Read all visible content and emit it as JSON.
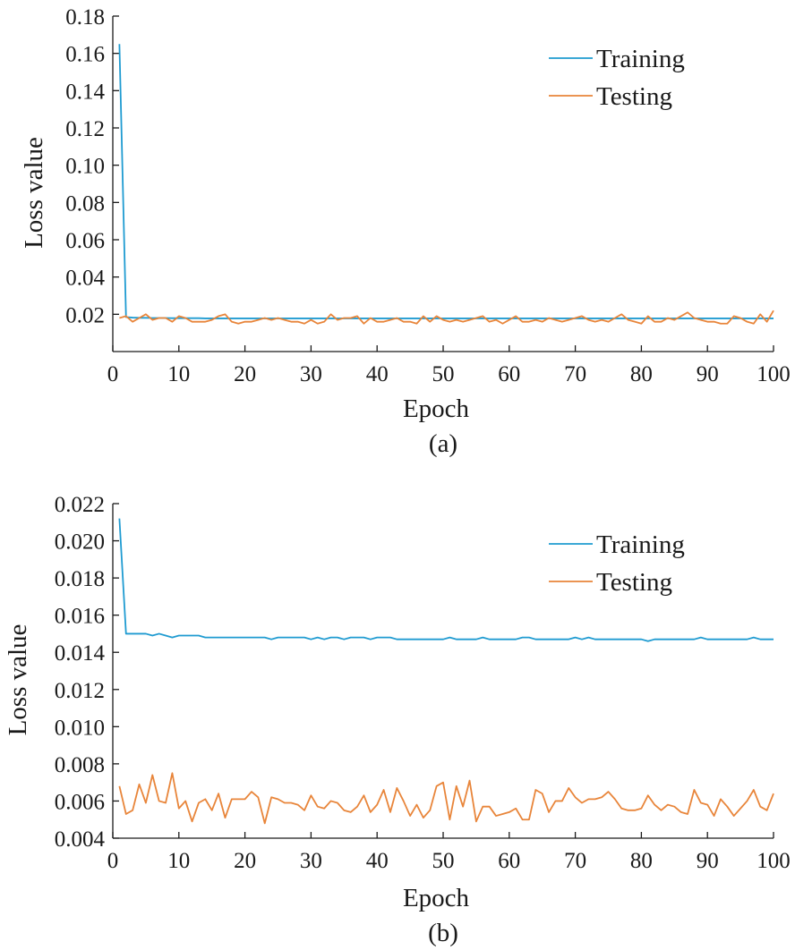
{
  "chart_data": [
    {
      "type": "line",
      "panel_label": "(a)",
      "xlabel": "Epoch",
      "ylabel": "Loss value",
      "xlim": [
        0,
        100
      ],
      "ylim": [
        0.0,
        0.18
      ],
      "xticks": [
        0,
        10,
        20,
        30,
        40,
        50,
        60,
        70,
        80,
        90,
        100
      ],
      "yticks": [
        "0.02",
        "0.04",
        "0.06",
        "0.08",
        "0.10",
        "0.12",
        "0.14",
        "0.16",
        "0.18"
      ],
      "ytick_values": [
        0.02,
        0.04,
        0.06,
        0.08,
        0.1,
        0.12,
        0.14,
        0.16,
        0.18
      ],
      "grid": false,
      "legend_position": "top-right",
      "series": [
        {
          "name": "Training",
          "color": "#1f9bd1",
          "x": [
            1,
            2,
            3,
            4,
            5,
            6,
            7,
            8,
            9,
            10,
            11,
            12,
            13,
            14,
            15,
            16,
            17,
            18,
            19,
            20,
            21,
            22,
            23,
            24,
            25,
            26,
            27,
            28,
            29,
            30,
            31,
            32,
            33,
            34,
            35,
            36,
            37,
            38,
            39,
            40,
            41,
            42,
            43,
            44,
            45,
            46,
            47,
            48,
            49,
            50,
            51,
            52,
            53,
            54,
            55,
            56,
            57,
            58,
            59,
            60,
            61,
            62,
            63,
            64,
            65,
            66,
            67,
            68,
            69,
            70,
            71,
            72,
            73,
            74,
            75,
            76,
            77,
            78,
            79,
            80,
            81,
            82,
            83,
            84,
            85,
            86,
            87,
            88,
            89,
            90,
            91,
            92,
            93,
            94,
            95,
            96,
            97,
            98,
            99,
            100
          ],
          "values": [
            0.165,
            0.0185,
            0.0182,
            0.0181,
            0.0181,
            0.018,
            0.018,
            0.018,
            0.0179,
            0.0179,
            0.0179,
            0.0179,
            0.0179,
            0.0178,
            0.0178,
            0.0178,
            0.0178,
            0.0178,
            0.0178,
            0.0178,
            0.0178,
            0.0178,
            0.0178,
            0.0178,
            0.0178,
            0.0178,
            0.0178,
            0.0178,
            0.0178,
            0.0178,
            0.0178,
            0.0178,
            0.0178,
            0.0178,
            0.0178,
            0.0178,
            0.0178,
            0.0178,
            0.0178,
            0.0178,
            0.0178,
            0.0178,
            0.0178,
            0.0178,
            0.0178,
            0.0178,
            0.0178,
            0.0178,
            0.0178,
            0.0178,
            0.0178,
            0.0178,
            0.0178,
            0.0178,
            0.0178,
            0.0178,
            0.0178,
            0.0178,
            0.0178,
            0.0178,
            0.0178,
            0.0178,
            0.0178,
            0.0178,
            0.0178,
            0.0178,
            0.0178,
            0.0178,
            0.0178,
            0.0178,
            0.0178,
            0.0178,
            0.0178,
            0.0178,
            0.0178,
            0.0178,
            0.0178,
            0.0178,
            0.0178,
            0.0178,
            0.0178,
            0.0178,
            0.0178,
            0.0178,
            0.0178,
            0.0178,
            0.0178,
            0.0178,
            0.0178,
            0.0178,
            0.0178,
            0.0178,
            0.0178,
            0.0178,
            0.0178,
            0.0178,
            0.0178,
            0.0178,
            0.0178,
            0.0178
          ]
        },
        {
          "name": "Testing",
          "color": "#e8853a",
          "x": [
            1,
            2,
            3,
            4,
            5,
            6,
            7,
            8,
            9,
            10,
            11,
            12,
            13,
            14,
            15,
            16,
            17,
            18,
            19,
            20,
            21,
            22,
            23,
            24,
            25,
            26,
            27,
            28,
            29,
            30,
            31,
            32,
            33,
            34,
            35,
            36,
            37,
            38,
            39,
            40,
            41,
            42,
            43,
            44,
            45,
            46,
            47,
            48,
            49,
            50,
            51,
            52,
            53,
            54,
            55,
            56,
            57,
            58,
            59,
            60,
            61,
            62,
            63,
            64,
            65,
            66,
            67,
            68,
            69,
            70,
            71,
            72,
            73,
            74,
            75,
            76,
            77,
            78,
            79,
            80,
            81,
            82,
            83,
            84,
            85,
            86,
            87,
            88,
            89,
            90,
            91,
            92,
            93,
            94,
            95,
            96,
            97,
            98,
            99,
            100
          ],
          "values": [
            0.018,
            0.019,
            0.016,
            0.018,
            0.02,
            0.017,
            0.018,
            0.018,
            0.016,
            0.019,
            0.018,
            0.016,
            0.016,
            0.016,
            0.017,
            0.019,
            0.02,
            0.016,
            0.015,
            0.016,
            0.016,
            0.017,
            0.018,
            0.017,
            0.018,
            0.017,
            0.016,
            0.016,
            0.015,
            0.017,
            0.015,
            0.016,
            0.02,
            0.017,
            0.018,
            0.018,
            0.019,
            0.015,
            0.018,
            0.016,
            0.016,
            0.017,
            0.018,
            0.016,
            0.016,
            0.015,
            0.019,
            0.016,
            0.019,
            0.017,
            0.016,
            0.017,
            0.016,
            0.017,
            0.018,
            0.019,
            0.016,
            0.017,
            0.015,
            0.017,
            0.019,
            0.016,
            0.016,
            0.017,
            0.016,
            0.018,
            0.017,
            0.016,
            0.017,
            0.018,
            0.019,
            0.017,
            0.016,
            0.017,
            0.016,
            0.018,
            0.02,
            0.017,
            0.016,
            0.015,
            0.019,
            0.016,
            0.016,
            0.018,
            0.017,
            0.019,
            0.021,
            0.018,
            0.017,
            0.016,
            0.016,
            0.015,
            0.015,
            0.019,
            0.018,
            0.016,
            0.015,
            0.02,
            0.016,
            0.022
          ]
        }
      ]
    },
    {
      "type": "line",
      "panel_label": "(b)",
      "xlabel": "Epoch",
      "ylabel": "Loss value",
      "xlim": [
        0,
        100
      ],
      "ylim": [
        0.004,
        0.022
      ],
      "xticks": [
        0,
        10,
        20,
        30,
        40,
        50,
        60,
        70,
        80,
        90,
        100
      ],
      "yticks": [
        "0.004",
        "0.006",
        "0.008",
        "0.010",
        "0.012",
        "0.014",
        "0.016",
        "0.018",
        "0.020",
        "0.022"
      ],
      "ytick_values": [
        0.004,
        0.006,
        0.008,
        0.01,
        0.012,
        0.014,
        0.016,
        0.018,
        0.02,
        0.022
      ],
      "grid": false,
      "legend_position": "top-right",
      "series": [
        {
          "name": "Training",
          "color": "#1f9bd1",
          "x": [
            1,
            2,
            3,
            4,
            5,
            6,
            7,
            8,
            9,
            10,
            11,
            12,
            13,
            14,
            15,
            16,
            17,
            18,
            19,
            20,
            21,
            22,
            23,
            24,
            25,
            26,
            27,
            28,
            29,
            30,
            31,
            32,
            33,
            34,
            35,
            36,
            37,
            38,
            39,
            40,
            41,
            42,
            43,
            44,
            45,
            46,
            47,
            48,
            49,
            50,
            51,
            52,
            53,
            54,
            55,
            56,
            57,
            58,
            59,
            60,
            61,
            62,
            63,
            64,
            65,
            66,
            67,
            68,
            69,
            70,
            71,
            72,
            73,
            74,
            75,
            76,
            77,
            78,
            79,
            80,
            81,
            82,
            83,
            84,
            85,
            86,
            87,
            88,
            89,
            90,
            91,
            92,
            93,
            94,
            95,
            96,
            97,
            98,
            99,
            100
          ],
          "values": [
            0.0212,
            0.015,
            0.015,
            0.015,
            0.015,
            0.0149,
            0.015,
            0.0149,
            0.0148,
            0.0149,
            0.0149,
            0.0149,
            0.0149,
            0.0148,
            0.0148,
            0.0148,
            0.0148,
            0.0148,
            0.0148,
            0.0148,
            0.0148,
            0.0148,
            0.0148,
            0.0147,
            0.0148,
            0.0148,
            0.0148,
            0.0148,
            0.0148,
            0.0147,
            0.0148,
            0.0147,
            0.0148,
            0.0148,
            0.0147,
            0.0148,
            0.0148,
            0.0148,
            0.0147,
            0.0148,
            0.0148,
            0.0148,
            0.0147,
            0.0147,
            0.0147,
            0.0147,
            0.0147,
            0.0147,
            0.0147,
            0.0147,
            0.0148,
            0.0147,
            0.0147,
            0.0147,
            0.0147,
            0.0148,
            0.0147,
            0.0147,
            0.0147,
            0.0147,
            0.0147,
            0.0148,
            0.0148,
            0.0147,
            0.0147,
            0.0147,
            0.0147,
            0.0147,
            0.0147,
            0.0148,
            0.0147,
            0.0148,
            0.0147,
            0.0147,
            0.0147,
            0.0147,
            0.0147,
            0.0147,
            0.0147,
            0.0147,
            0.0146,
            0.0147,
            0.0147,
            0.0147,
            0.0147,
            0.0147,
            0.0147,
            0.0147,
            0.0148,
            0.0147,
            0.0147,
            0.0147,
            0.0147,
            0.0147,
            0.0147,
            0.0147,
            0.0148,
            0.0147,
            0.0147,
            0.0147
          ]
        },
        {
          "name": "Testing",
          "color": "#e8853a",
          "x": [
            1,
            2,
            3,
            4,
            5,
            6,
            7,
            8,
            9,
            10,
            11,
            12,
            13,
            14,
            15,
            16,
            17,
            18,
            19,
            20,
            21,
            22,
            23,
            24,
            25,
            26,
            27,
            28,
            29,
            30,
            31,
            32,
            33,
            34,
            35,
            36,
            37,
            38,
            39,
            40,
            41,
            42,
            43,
            44,
            45,
            46,
            47,
            48,
            49,
            50,
            51,
            52,
            53,
            54,
            55,
            56,
            57,
            58,
            59,
            60,
            61,
            62,
            63,
            64,
            65,
            66,
            67,
            68,
            69,
            70,
            71,
            72,
            73,
            74,
            75,
            76,
            77,
            78,
            79,
            80,
            81,
            82,
            83,
            84,
            85,
            86,
            87,
            88,
            89,
            90,
            91,
            92,
            93,
            94,
            95,
            96,
            97,
            98,
            99,
            100
          ],
          "values": [
            0.0068,
            0.0053,
            0.0055,
            0.0069,
            0.0059,
            0.0074,
            0.006,
            0.0059,
            0.0075,
            0.0056,
            0.006,
            0.0049,
            0.0059,
            0.0061,
            0.0055,
            0.0064,
            0.0051,
            0.0061,
            0.0061,
            0.0061,
            0.0065,
            0.0062,
            0.0048,
            0.0062,
            0.0061,
            0.0059,
            0.0059,
            0.0058,
            0.0055,
            0.0063,
            0.0057,
            0.0056,
            0.006,
            0.0059,
            0.0055,
            0.0054,
            0.0057,
            0.0063,
            0.0054,
            0.0058,
            0.0066,
            0.0054,
            0.0067,
            0.006,
            0.0052,
            0.0058,
            0.0051,
            0.0055,
            0.0068,
            0.007,
            0.005,
            0.0068,
            0.0057,
            0.0071,
            0.0049,
            0.0057,
            0.0057,
            0.0052,
            0.0053,
            0.0054,
            0.0056,
            0.005,
            0.005,
            0.0066,
            0.0064,
            0.0054,
            0.006,
            0.006,
            0.0067,
            0.0062,
            0.0059,
            0.0061,
            0.0061,
            0.0062,
            0.0065,
            0.0061,
            0.0056,
            0.0055,
            0.0055,
            0.0056,
            0.0063,
            0.0058,
            0.0055,
            0.0058,
            0.0057,
            0.0054,
            0.0053,
            0.0066,
            0.0059,
            0.0058,
            0.0052,
            0.0061,
            0.0057,
            0.0052,
            0.0056,
            0.006,
            0.0066,
            0.0057,
            0.0055,
            0.0064
          ]
        }
      ]
    }
  ]
}
